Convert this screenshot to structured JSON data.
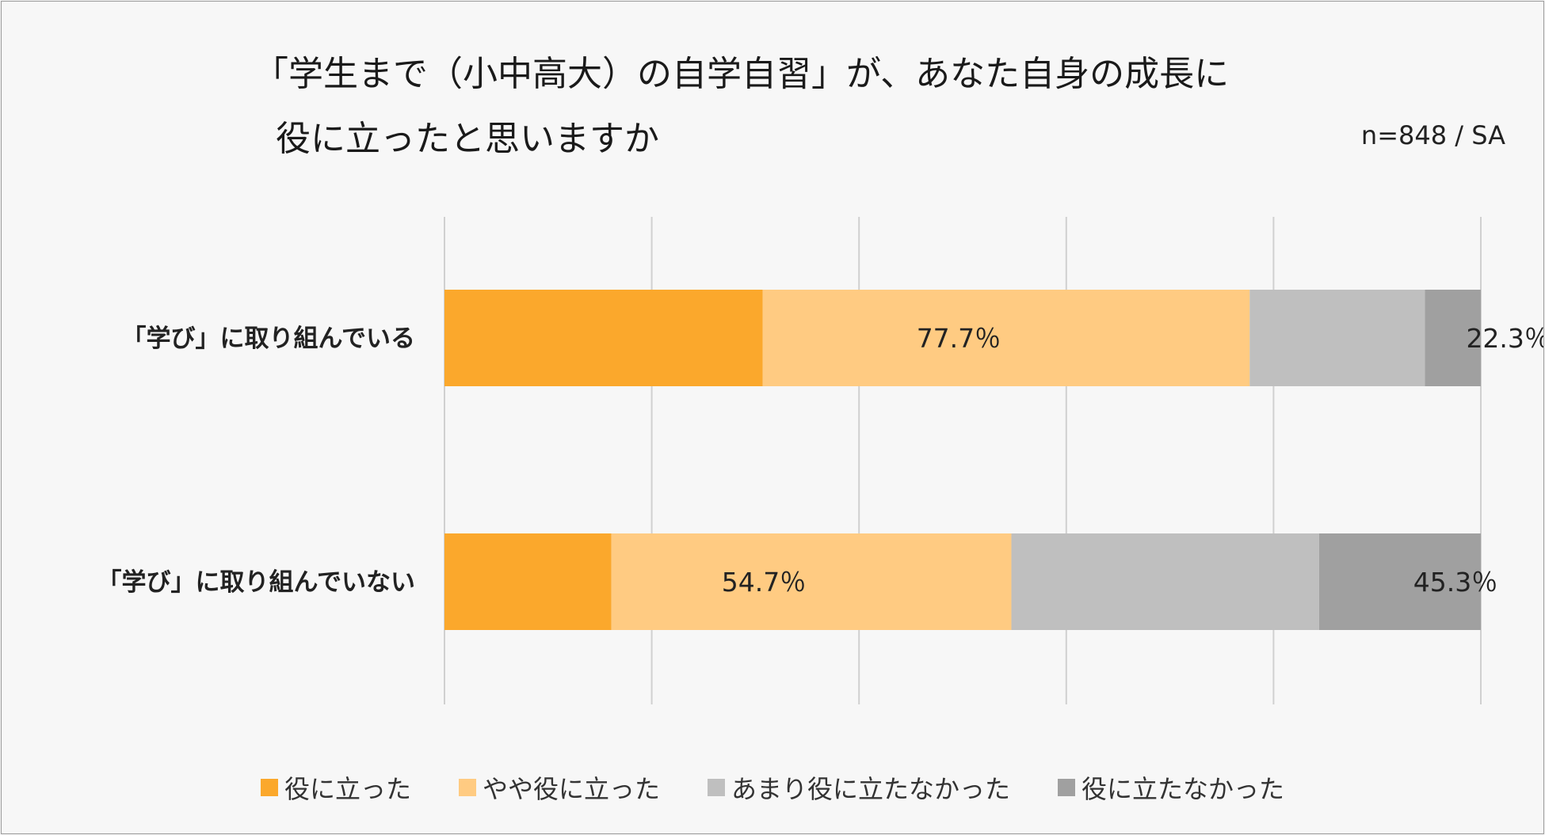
{
  "chart_data": {
    "type": "bar",
    "orientation": "horizontal",
    "stacked": true,
    "title": "「学生まで（小中高大）の自学自習」が、あなた自身の成長に役に立ったと思いますか",
    "title_lines": [
      "「学生まで（小中高大）の自学自習」が、あなた自身の成長に",
      "役に立ったと思いますか"
    ],
    "note": "n=848 / SA",
    "categories": [
      "「学び」に取り組んでいる",
      "「学び」に取り組んでいない"
    ],
    "xlim": [
      0,
      100
    ],
    "grid": true,
    "legend_position": "bottom",
    "series": [
      {
        "name": "役に立った",
        "color": "#fba82c",
        "values": [
          30.7,
          16.1
        ]
      },
      {
        "name": "やや役に立った",
        "color": "#ffcb82",
        "values": [
          47.0,
          38.6
        ]
      },
      {
        "name": "あまり役に立たなかった",
        "color": "#bfbfbf",
        "values": [
          16.9,
          29.7
        ]
      },
      {
        "name": "役に立たなかった",
        "color": "#a0a0a0",
        "values": [
          5.4,
          15.6
        ]
      }
    ],
    "annotations": [
      {
        "category": 0,
        "text": "77.7％",
        "after_series": 0
      },
      {
        "category": 0,
        "text": "22.3％",
        "after_series": 2
      },
      {
        "category": 1,
        "text": "54.7％",
        "after_series": 0
      },
      {
        "category": 1,
        "text": "45.3％",
        "after_series": 2
      }
    ]
  }
}
